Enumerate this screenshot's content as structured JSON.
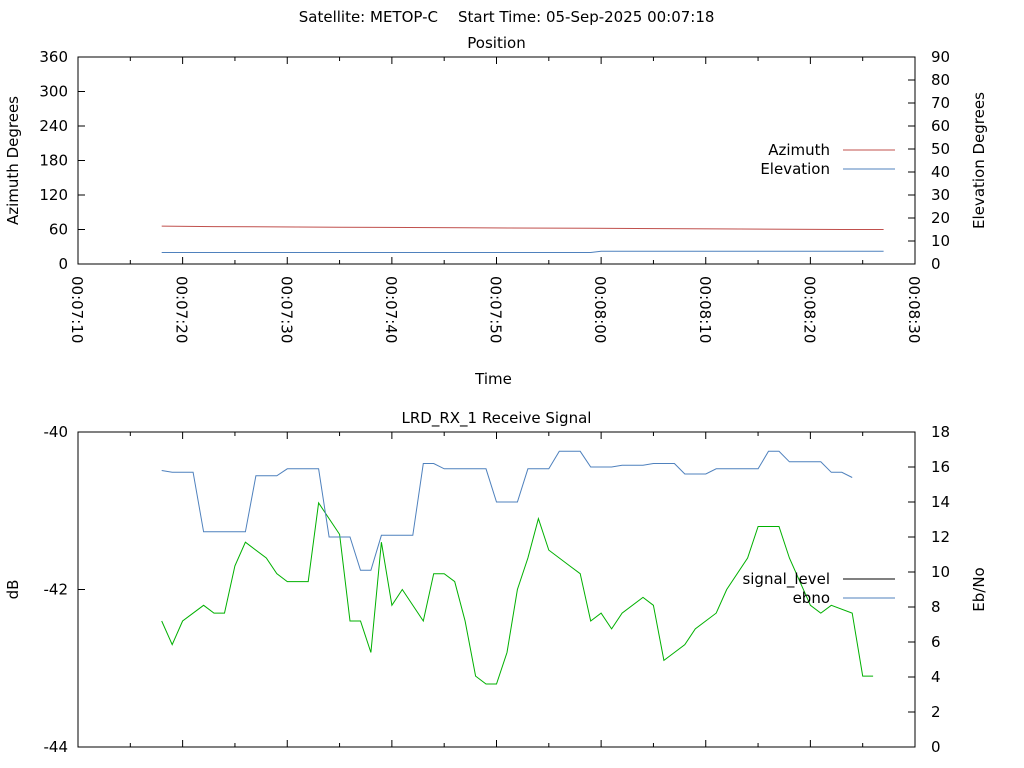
{
  "header": {
    "satellite": "Satellite: METOP-C",
    "start_time": "Start Time: 05-Sep-2025 00:07:18"
  },
  "colors": {
    "azimuth": "#c0504d",
    "elevation": "#4f81bd",
    "signal_level": "#00b000",
    "ebno": "#4f81bd",
    "signal_legend": "#000000"
  },
  "chart_data": [
    {
      "type": "line",
      "title": "Position",
      "xlabel": "Time",
      "ylabel": "Azimuth Degrees",
      "y2label": "Elevation Degrees",
      "x_ticks": [
        "00:07:10",
        "00:07:20",
        "00:07:30",
        "00:07:40",
        "00:07:50",
        "00:08:00",
        "00:08:10",
        "00:08:20",
        "00:08:30"
      ],
      "xlim": [
        10,
        90
      ],
      "ylim": [
        0,
        360
      ],
      "y_ticks": [
        "0",
        "60",
        "120",
        "180",
        "240",
        "300",
        "360"
      ],
      "y2lim": [
        0,
        90
      ],
      "y2_ticks": [
        "0",
        "10",
        "20",
        "30",
        "40",
        "50",
        "60",
        "70",
        "80",
        "90"
      ],
      "legend": "right",
      "series": [
        {
          "name": "Azimuth",
          "axis": "y",
          "points": [
            [
              18,
              66
            ],
            [
              23,
              65
            ],
            [
              35,
              64
            ],
            [
              47,
              63
            ],
            [
              59,
              62
            ],
            [
              71,
              61
            ],
            [
              83,
              60
            ],
            [
              87,
              60
            ]
          ]
        },
        {
          "name": "Elevation",
          "axis": "y2",
          "points": [
            [
              18,
              5
            ],
            [
              59,
              5
            ],
            [
              60,
              5.5
            ],
            [
              87,
              5.5
            ]
          ]
        }
      ]
    },
    {
      "type": "line",
      "title": "LRD_RX_1 Receive Signal",
      "xlabel": "",
      "ylabel": "dB",
      "y2label": "Eb/No",
      "xlim": [
        10,
        90
      ],
      "ylim": [
        -44,
        -40
      ],
      "y_ticks": [
        "-44",
        "-42",
        "-40"
      ],
      "y2lim": [
        0,
        18
      ],
      "y2_ticks": [
        "0",
        "2",
        "4",
        "6",
        "8",
        "10",
        "12",
        "14",
        "16",
        "18"
      ],
      "legend": "right",
      "series": [
        {
          "name": "signal_level",
          "axis": "y",
          "points": [
            [
              18,
              -42.4
            ],
            [
              19,
              -42.7
            ],
            [
              20,
              -42.4
            ],
            [
              22,
              -42.2
            ],
            [
              23,
              -42.3
            ],
            [
              24,
              -42.3
            ],
            [
              25,
              -41.7
            ],
            [
              26,
              -41.4
            ],
            [
              28,
              -41.6
            ],
            [
              29,
              -41.8
            ],
            [
              30,
              -41.9
            ],
            [
              32,
              -41.9
            ],
            [
              33,
              -40.9
            ],
            [
              35,
              -41.3
            ],
            [
              36,
              -42.4
            ],
            [
              37,
              -42.4
            ],
            [
              38,
              -42.8
            ],
            [
              39,
              -41.4
            ],
            [
              40,
              -42.2
            ],
            [
              41,
              -42.0
            ],
            [
              43,
              -42.4
            ],
            [
              44,
              -41.8
            ],
            [
              45,
              -41.8
            ],
            [
              46,
              -41.9
            ],
            [
              47,
              -42.4
            ],
            [
              48,
              -43.1
            ],
            [
              49,
              -43.2
            ],
            [
              50,
              -43.2
            ],
            [
              51,
              -42.8
            ],
            [
              52,
              -42.0
            ],
            [
              53,
              -41.6
            ],
            [
              54,
              -41.1
            ],
            [
              55,
              -41.5
            ],
            [
              57,
              -41.7
            ],
            [
              58,
              -41.8
            ],
            [
              59,
              -42.4
            ],
            [
              60,
              -42.3
            ],
            [
              61,
              -42.5
            ],
            [
              62,
              -42.3
            ],
            [
              64,
              -42.1
            ],
            [
              65,
              -42.2
            ],
            [
              66,
              -42.9
            ],
            [
              67,
              -42.8
            ],
            [
              68,
              -42.7
            ],
            [
              69,
              -42.5
            ],
            [
              71,
              -42.3
            ],
            [
              72,
              -42.0
            ],
            [
              74,
              -41.6
            ],
            [
              75,
              -41.2
            ],
            [
              77,
              -41.2
            ],
            [
              78,
              -41.6
            ],
            [
              80,
              -42.2
            ],
            [
              81,
              -42.3
            ],
            [
              82,
              -42.2
            ],
            [
              84,
              -42.3
            ],
            [
              85,
              -43.1
            ],
            [
              86,
              -43.1
            ]
          ]
        },
        {
          "name": "ebno",
          "axis": "y2",
          "points": [
            [
              18,
              15.8
            ],
            [
              19,
              15.7
            ],
            [
              21,
              15.7
            ],
            [
              22,
              12.3
            ],
            [
              24,
              12.3
            ],
            [
              26,
              12.3
            ],
            [
              27,
              15.5
            ],
            [
              29,
              15.5
            ],
            [
              30,
              15.9
            ],
            [
              33,
              15.9
            ],
            [
              34,
              12.0
            ],
            [
              36,
              12.0
            ],
            [
              37,
              10.1
            ],
            [
              38,
              10.1
            ],
            [
              39,
              12.1
            ],
            [
              42,
              12.1
            ],
            [
              43,
              16.2
            ],
            [
              44,
              16.2
            ],
            [
              45,
              15.9
            ],
            [
              49,
              15.9
            ],
            [
              50,
              14.0
            ],
            [
              52,
              14.0
            ],
            [
              53,
              15.9
            ],
            [
              55,
              15.9
            ],
            [
              56,
              16.9
            ],
            [
              58,
              16.9
            ],
            [
              59,
              16.0
            ],
            [
              61,
              16.0
            ],
            [
              62,
              16.1
            ],
            [
              64,
              16.1
            ],
            [
              65,
              16.2
            ],
            [
              67,
              16.2
            ],
            [
              68,
              15.6
            ],
            [
              70,
              15.6
            ],
            [
              71,
              15.9
            ],
            [
              75,
              15.9
            ],
            [
              76,
              16.9
            ],
            [
              77,
              16.9
            ],
            [
              78,
              16.3
            ],
            [
              81,
              16.3
            ],
            [
              82,
              15.7
            ],
            [
              83,
              15.7
            ],
            [
              84,
              15.4
            ]
          ]
        }
      ]
    }
  ]
}
